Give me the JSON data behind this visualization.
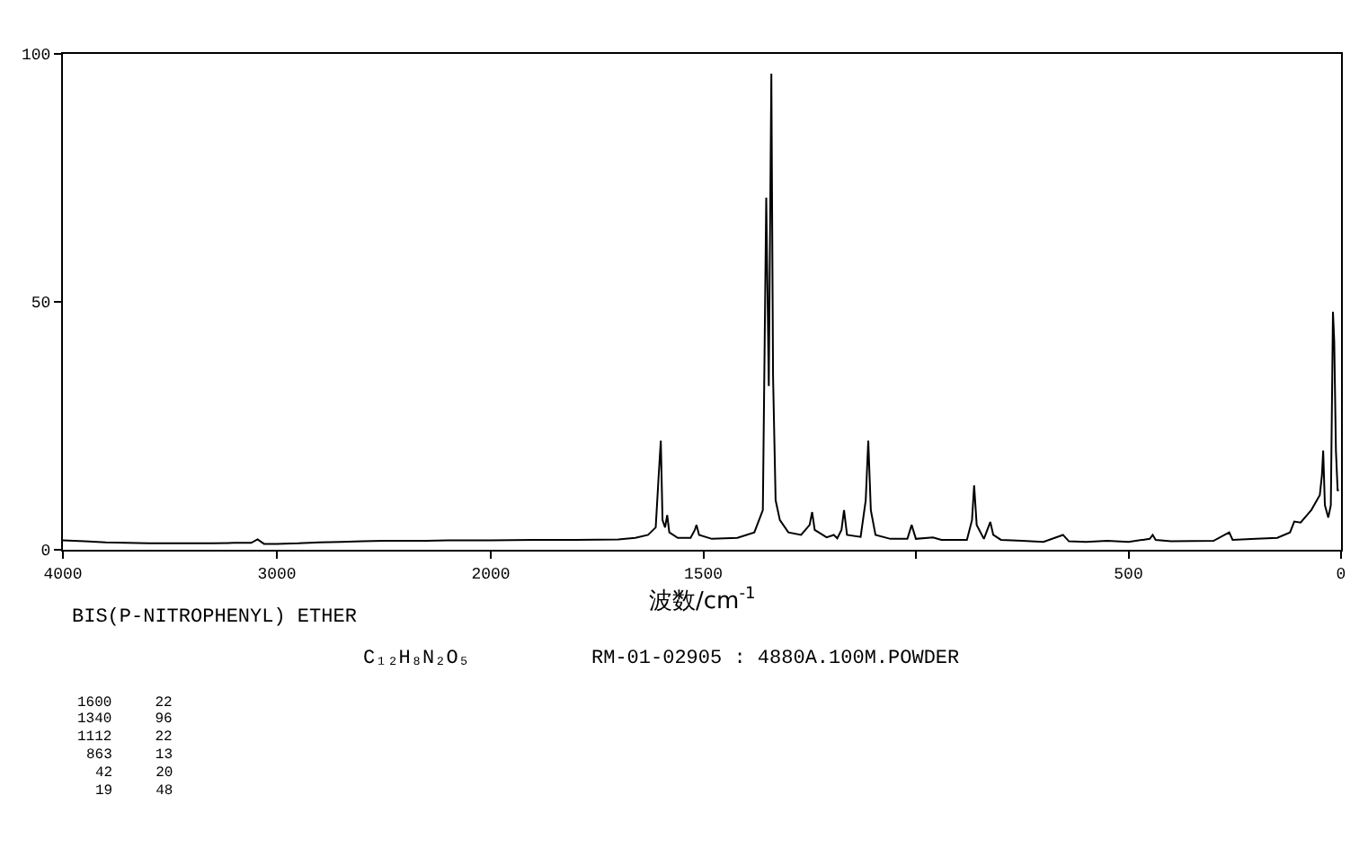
{
  "chart_data": [
    {
      "type": "line",
      "title": "BIS(P-NITROPHENYL) ETHER",
      "subtitle": "C₁₂H₈N₂O₅",
      "annotations": [
        "RM-01-02905 : 4880A.100M.POWDER",
        "1600 22",
        "1340 96",
        "1112 22",
        "863 13",
        "42 20",
        "19 48"
      ],
      "x": [
        4000,
        3900,
        3800,
        3700,
        3600,
        3500,
        3400,
        3300,
        3200,
        3120,
        3090,
        3060,
        3000,
        2900,
        2800,
        2700,
        2600,
        2500,
        2400,
        2300,
        2200,
        2100,
        2000
      ],
      "series": [
        {
          "color": "#000000",
          "values": [
            1.9,
            1.7,
            1.5,
            1.4,
            1.3,
            1.3,
            1.3,
            1.3,
            1.4,
            1.4,
            2.1,
            1.2,
            1.2,
            1.3,
            1.5,
            1.6,
            1.7,
            1.8,
            1.8,
            1.8,
            1.9,
            1.9,
            1.9
          ]
        }
      ],
      "xlim": [
        4000,
        2000
      ],
      "xticks": [
        4000,
        3000,
        2000
      ],
      "ylim": [
        0,
        100
      ],
      "yticks": [
        0,
        50,
        100
      ]
    },
    {
      "type": "line",
      "xlabel": "波数/cm$^{-1}$",
      "x": [
        2000,
        1900,
        1800,
        1700,
        1660,
        1630,
        1612,
        1605,
        1600,
        1596,
        1590,
        1585,
        1580,
        1560,
        1530,
        1520,
        1516,
        1510,
        1480,
        1420,
        1380,
        1360,
        1352,
        1346,
        1340,
        1336,
        1330,
        1320,
        1300,
        1270,
        1250,
        1244,
        1238,
        1210,
        1193,
        1185,
        1175,
        1169,
        1162,
        1130,
        1118,
        1112,
        1106,
        1095,
        1060,
        1020,
        1010,
        1000,
        960,
        940,
        880,
        868,
        863,
        857,
        840,
        825,
        818,
        800,
        750,
        700,
        654,
        640,
        600,
        550,
        500,
        450,
        443,
        436,
        400,
        300,
        263,
        255,
        200,
        150,
        120,
        110,
        95,
        75,
        70,
        60,
        50,
        45,
        42,
        38,
        30,
        24,
        19,
        16,
        12,
        8,
        5
      ],
      "series": [
        {
          "color": "#000000",
          "values": [
            1.9,
            2.0,
            2.0,
            2.1,
            2.4,
            3.0,
            4.5,
            15,
            22,
            6,
            4.5,
            7,
            3.5,
            2.4,
            2.4,
            4,
            5,
            3,
            2.2,
            2.4,
            3.5,
            8,
            71,
            33,
            96,
            35,
            10,
            6,
            3.5,
            3,
            5,
            7.6,
            4,
            2.5,
            3,
            2.3,
            4,
            8,
            3,
            2.6,
            10,
            22,
            8,
            3,
            2.2,
            2.2,
            5,
            2.2,
            2.5,
            2.0,
            2.0,
            6,
            13,
            5,
            2.2,
            5.6,
            3,
            2.0,
            1.8,
            1.6,
            3,
            1.7,
            1.6,
            1.8,
            1.6,
            2.2,
            3,
            2.0,
            1.7,
            1.8,
            3.5,
            2.0,
            2.2,
            2.4,
            3.5,
            5.7,
            5.5,
            7.5,
            8,
            9.5,
            11,
            15,
            20,
            9,
            6.5,
            9,
            48,
            42,
            20,
            12,
            12
          ]
        }
      ],
      "xlim": [
        2000,
        0
      ],
      "xticks": [
        1500,
        {
          "value": 1000,
          "label": null
        },
        500,
        0
      ],
      "ylim": [
        0,
        100
      ],
      "yticks": [
        0,
        50,
        100
      ],
      "tick_labels": "x"
    }
  ]
}
